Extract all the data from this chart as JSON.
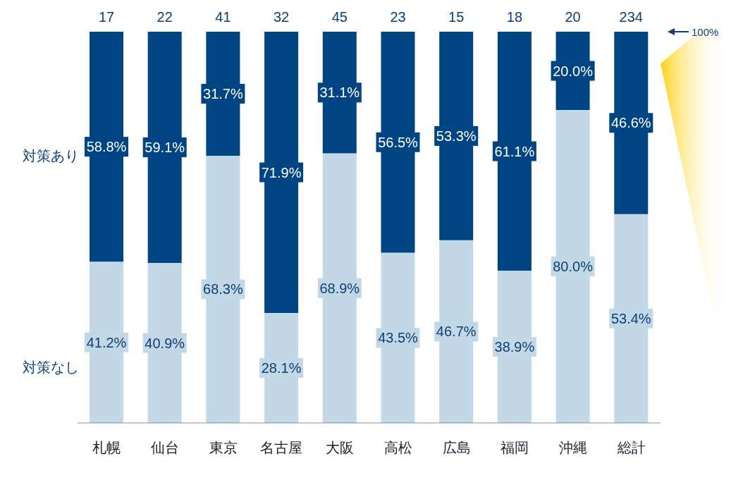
{
  "chart_data": {
    "type": "bar",
    "stacked": true,
    "categories": [
      "札幌",
      "仙台",
      "東京",
      "名古屋",
      "大阪",
      "高松",
      "広島",
      "福岡",
      "沖縄",
      "総計"
    ],
    "series": [
      {
        "name": "対策なし",
        "color": "#c2d8e6",
        "values": [
          41.2,
          40.9,
          68.3,
          28.1,
          68.9,
          43.5,
          46.7,
          38.9,
          80.0,
          53.4
        ],
        "value_labels": [
          "41.2%",
          "40.9%",
          "68.3%",
          "28.1%",
          "68.9%",
          "43.5%",
          "46.7%",
          "38.9%",
          "80.0%",
          "53.4%"
        ]
      },
      {
        "name": "対策あり",
        "color": "#004583",
        "values": [
          58.8,
          59.1,
          31.7,
          71.9,
          31.1,
          56.5,
          53.3,
          61.1,
          20.0,
          46.6
        ],
        "value_labels": [
          "58.8%",
          "59.1%",
          "31.7%",
          "71.9%",
          "31.1%",
          "56.5%",
          "53.3%",
          "61.1%",
          "20.0%",
          "46.6%"
        ]
      }
    ],
    "ylim": [
      0,
      100
    ],
    "tick_labels": "x",
    "legend": "left",
    "annotations": [
      "100%",
      {
        "text": "17",
        "x": "札幌",
        "y": 100
      },
      {
        "text": "22",
        "x": "仙台",
        "y": 100
      },
      {
        "text": "41",
        "x": "東京",
        "y": 100
      },
      {
        "text": "32",
        "x": "名古屋",
        "y": 100
      },
      {
        "text": "45",
        "x": "大阪",
        "y": 100
      },
      {
        "text": "23",
        "x": "高松",
        "y": 100
      },
      {
        "text": "15",
        "x": "広島",
        "y": 100
      },
      {
        "text": "18",
        "x": "福岡",
        "y": 100
      },
      {
        "text": "20",
        "x": "沖縄",
        "y": 100
      },
      {
        "text": "234",
        "x": "総計",
        "y": 100
      }
    ]
  }
}
